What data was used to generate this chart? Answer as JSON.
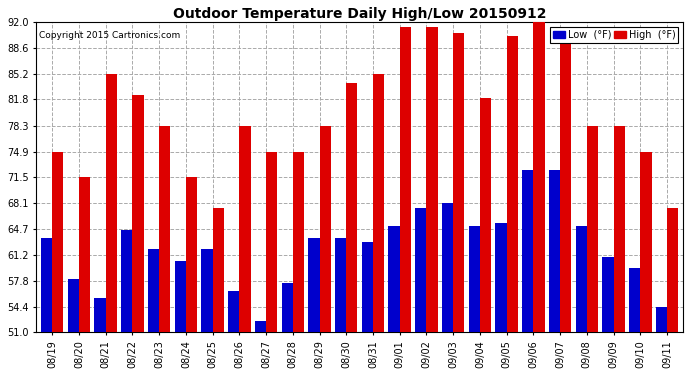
{
  "title": "Outdoor Temperature Daily High/Low 20150912",
  "copyright": "Copyright 2015 Cartronics.com",
  "legend_low": "Low  (°F)",
  "legend_high": "High  (°F)",
  "low_color": "#0000cc",
  "high_color": "#dd0000",
  "background_color": "#ffffff",
  "grid_color": "#aaaaaa",
  "ylim": [
    51.0,
    92.0
  ],
  "yticks": [
    51.0,
    54.4,
    57.8,
    61.2,
    64.7,
    68.1,
    71.5,
    74.9,
    78.3,
    81.8,
    85.2,
    88.6,
    92.0
  ],
  "dates": [
    "08/19",
    "08/20",
    "08/21",
    "08/22",
    "08/23",
    "08/24",
    "08/25",
    "08/26",
    "08/27",
    "08/28",
    "08/29",
    "08/30",
    "08/31",
    "09/01",
    "09/02",
    "09/03",
    "09/04",
    "09/05",
    "09/06",
    "09/07",
    "09/08",
    "09/09",
    "09/10",
    "09/11"
  ],
  "highs": [
    74.9,
    71.5,
    85.2,
    82.4,
    78.3,
    71.5,
    67.5,
    78.3,
    74.9,
    74.9,
    78.3,
    84.0,
    85.2,
    91.4,
    91.4,
    90.5,
    82.0,
    90.2,
    92.0,
    89.5,
    78.3,
    78.3,
    74.9,
    67.5
  ],
  "lows": [
    63.5,
    58.0,
    55.5,
    64.5,
    62.0,
    60.5,
    62.0,
    56.5,
    52.5,
    57.5,
    63.5,
    63.5,
    63.0,
    65.0,
    67.5,
    68.1,
    65.0,
    65.5,
    72.5,
    72.5,
    65.0,
    61.0,
    59.5,
    54.3
  ],
  "figwidth": 6.9,
  "figheight": 3.75,
  "dpi": 100
}
